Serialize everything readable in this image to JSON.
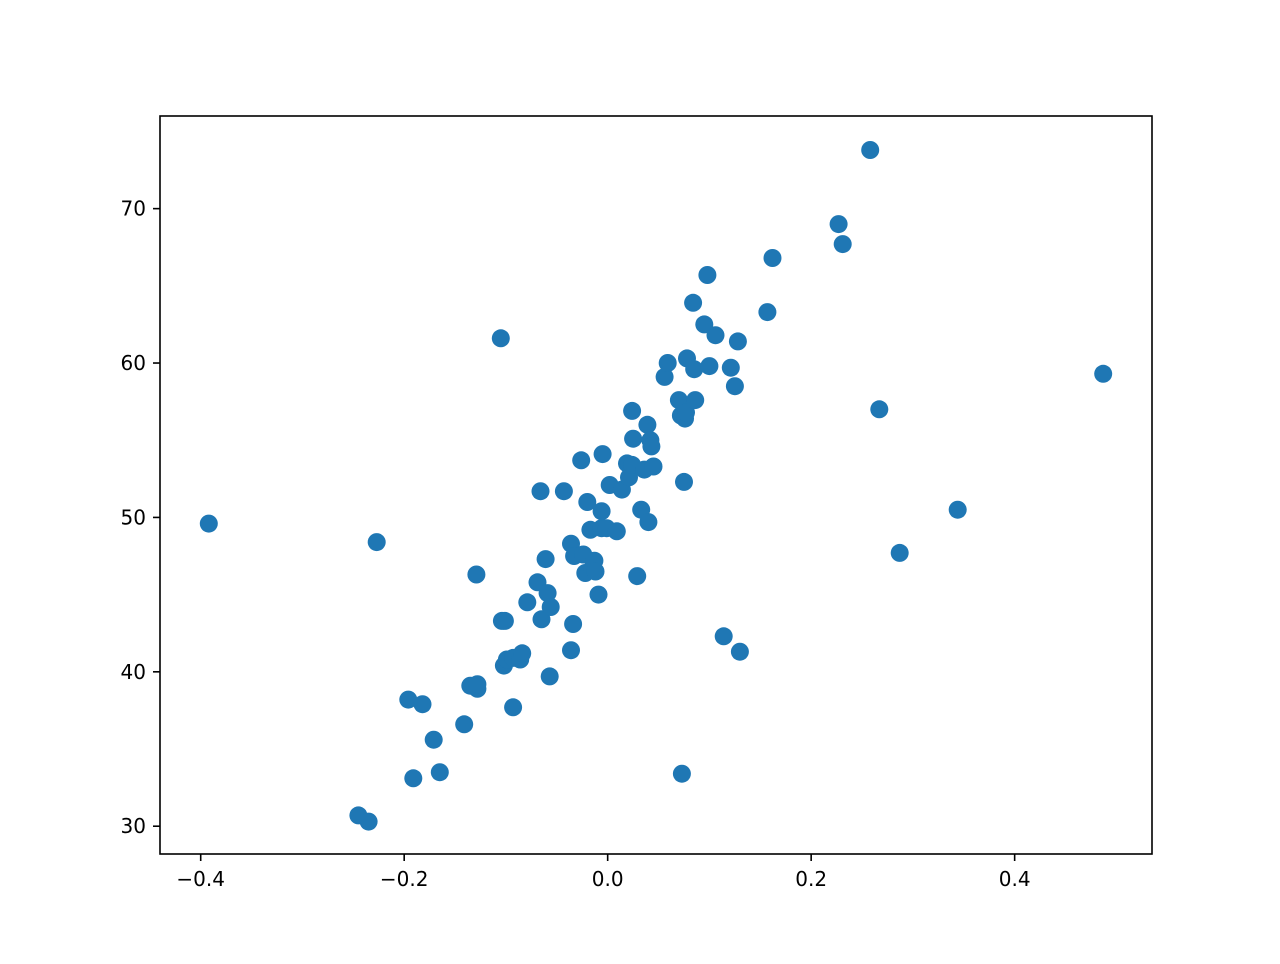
{
  "chart_data": {
    "type": "scatter",
    "title": "",
    "xlabel": "",
    "ylabel": "",
    "xlim": [
      -0.44,
      0.535
    ],
    "ylim": [
      28.2,
      76.0
    ],
    "xticks": [
      -0.4,
      -0.2,
      0.0,
      0.2,
      0.4
    ],
    "xtick_labels": [
      "−0.4",
      "−0.2",
      "0.0",
      "0.2",
      "0.4"
    ],
    "yticks": [
      30,
      40,
      50,
      60,
      70
    ],
    "ytick_labels": [
      "30",
      "40",
      "50",
      "60",
      "70"
    ],
    "grid": false,
    "legend": "none",
    "marker_color": "#1f77b4",
    "series": [
      {
        "points": [
          {
            "x": -0.392,
            "y": 49.6
          },
          {
            "x": -0.245,
            "y": 30.7
          },
          {
            "x": -0.235,
            "y": 30.3
          },
          {
            "x": -0.227,
            "y": 48.4
          },
          {
            "x": -0.196,
            "y": 38.2
          },
          {
            "x": -0.191,
            "y": 33.1
          },
          {
            "x": -0.182,
            "y": 37.9
          },
          {
            "x": -0.171,
            "y": 35.6
          },
          {
            "x": -0.165,
            "y": 33.5
          },
          {
            "x": -0.141,
            "y": 36.6
          },
          {
            "x": -0.135,
            "y": 39.1
          },
          {
            "x": -0.129,
            "y": 46.3
          },
          {
            "x": -0.128,
            "y": 38.9
          },
          {
            "x": -0.128,
            "y": 39.2
          },
          {
            "x": -0.105,
            "y": 61.6
          },
          {
            "x": -0.104,
            "y": 43.3
          },
          {
            "x": -0.101,
            "y": 43.3
          },
          {
            "x": -0.102,
            "y": 40.4
          },
          {
            "x": -0.099,
            "y": 40.8
          },
          {
            "x": -0.093,
            "y": 40.9
          },
          {
            "x": -0.093,
            "y": 37.7
          },
          {
            "x": -0.086,
            "y": 40.8
          },
          {
            "x": -0.084,
            "y": 41.2
          },
          {
            "x": -0.079,
            "y": 44.5
          },
          {
            "x": -0.069,
            "y": 45.8
          },
          {
            "x": -0.066,
            "y": 51.7
          },
          {
            "x": -0.065,
            "y": 43.4
          },
          {
            "x": -0.061,
            "y": 47.3
          },
          {
            "x": -0.059,
            "y": 45.1
          },
          {
            "x": -0.057,
            "y": 39.7
          },
          {
            "x": -0.056,
            "y": 44.2
          },
          {
            "x": -0.043,
            "y": 51.7
          },
          {
            "x": -0.036,
            "y": 48.3
          },
          {
            "x": -0.036,
            "y": 41.4
          },
          {
            "x": -0.034,
            "y": 43.1
          },
          {
            "x": -0.033,
            "y": 47.5
          },
          {
            "x": -0.026,
            "y": 53.7
          },
          {
            "x": -0.024,
            "y": 47.6
          },
          {
            "x": -0.022,
            "y": 46.4
          },
          {
            "x": -0.02,
            "y": 51.0
          },
          {
            "x": -0.017,
            "y": 49.2
          },
          {
            "x": -0.015,
            "y": 46.7
          },
          {
            "x": -0.013,
            "y": 47.2
          },
          {
            "x": -0.012,
            "y": 46.5
          },
          {
            "x": -0.009,
            "y": 45.0
          },
          {
            "x": -0.006,
            "y": 49.3
          },
          {
            "x": -0.006,
            "y": 50.4
          },
          {
            "x": -0.005,
            "y": 54.1
          },
          {
            "x": -0.001,
            "y": 49.3
          },
          {
            "x": 0.002,
            "y": 52.1
          },
          {
            "x": 0.009,
            "y": 49.1
          },
          {
            "x": 0.014,
            "y": 51.8
          },
          {
            "x": 0.019,
            "y": 53.5
          },
          {
            "x": 0.021,
            "y": 52.6
          },
          {
            "x": 0.024,
            "y": 53.4
          },
          {
            "x": 0.024,
            "y": 56.9
          },
          {
            "x": 0.025,
            "y": 55.1
          },
          {
            "x": 0.029,
            "y": 46.2
          },
          {
            "x": 0.033,
            "y": 50.5
          },
          {
            "x": 0.036,
            "y": 53.1
          },
          {
            "x": 0.039,
            "y": 56.0
          },
          {
            "x": 0.04,
            "y": 49.7
          },
          {
            "x": 0.042,
            "y": 55.0
          },
          {
            "x": 0.043,
            "y": 54.6
          },
          {
            "x": 0.045,
            "y": 53.3
          },
          {
            "x": 0.056,
            "y": 59.1
          },
          {
            "x": 0.059,
            "y": 60.0
          },
          {
            "x": 0.07,
            "y": 57.6
          },
          {
            "x": 0.072,
            "y": 56.6
          },
          {
            "x": 0.073,
            "y": 33.4
          },
          {
            "x": 0.075,
            "y": 52.3
          },
          {
            "x": 0.076,
            "y": 56.4
          },
          {
            "x": 0.077,
            "y": 56.8
          },
          {
            "x": 0.078,
            "y": 60.3
          },
          {
            "x": 0.084,
            "y": 63.9
          },
          {
            "x": 0.085,
            "y": 59.6
          },
          {
            "x": 0.086,
            "y": 57.6
          },
          {
            "x": 0.095,
            "y": 62.5
          },
          {
            "x": 0.098,
            "y": 65.7
          },
          {
            "x": 0.1,
            "y": 59.8
          },
          {
            "x": 0.106,
            "y": 61.8
          },
          {
            "x": 0.114,
            "y": 42.3
          },
          {
            "x": 0.121,
            "y": 59.7
          },
          {
            "x": 0.125,
            "y": 58.5
          },
          {
            "x": 0.128,
            "y": 61.4
          },
          {
            "x": 0.13,
            "y": 41.3
          },
          {
            "x": 0.157,
            "y": 63.3
          },
          {
            "x": 0.162,
            "y": 66.8
          },
          {
            "x": 0.227,
            "y": 69.0
          },
          {
            "x": 0.231,
            "y": 67.7
          },
          {
            "x": 0.258,
            "y": 73.8
          },
          {
            "x": 0.267,
            "y": 57.0
          },
          {
            "x": 0.287,
            "y": 47.7
          },
          {
            "x": 0.344,
            "y": 50.5
          },
          {
            "x": 0.487,
            "y": 59.3
          }
        ]
      }
    ]
  }
}
